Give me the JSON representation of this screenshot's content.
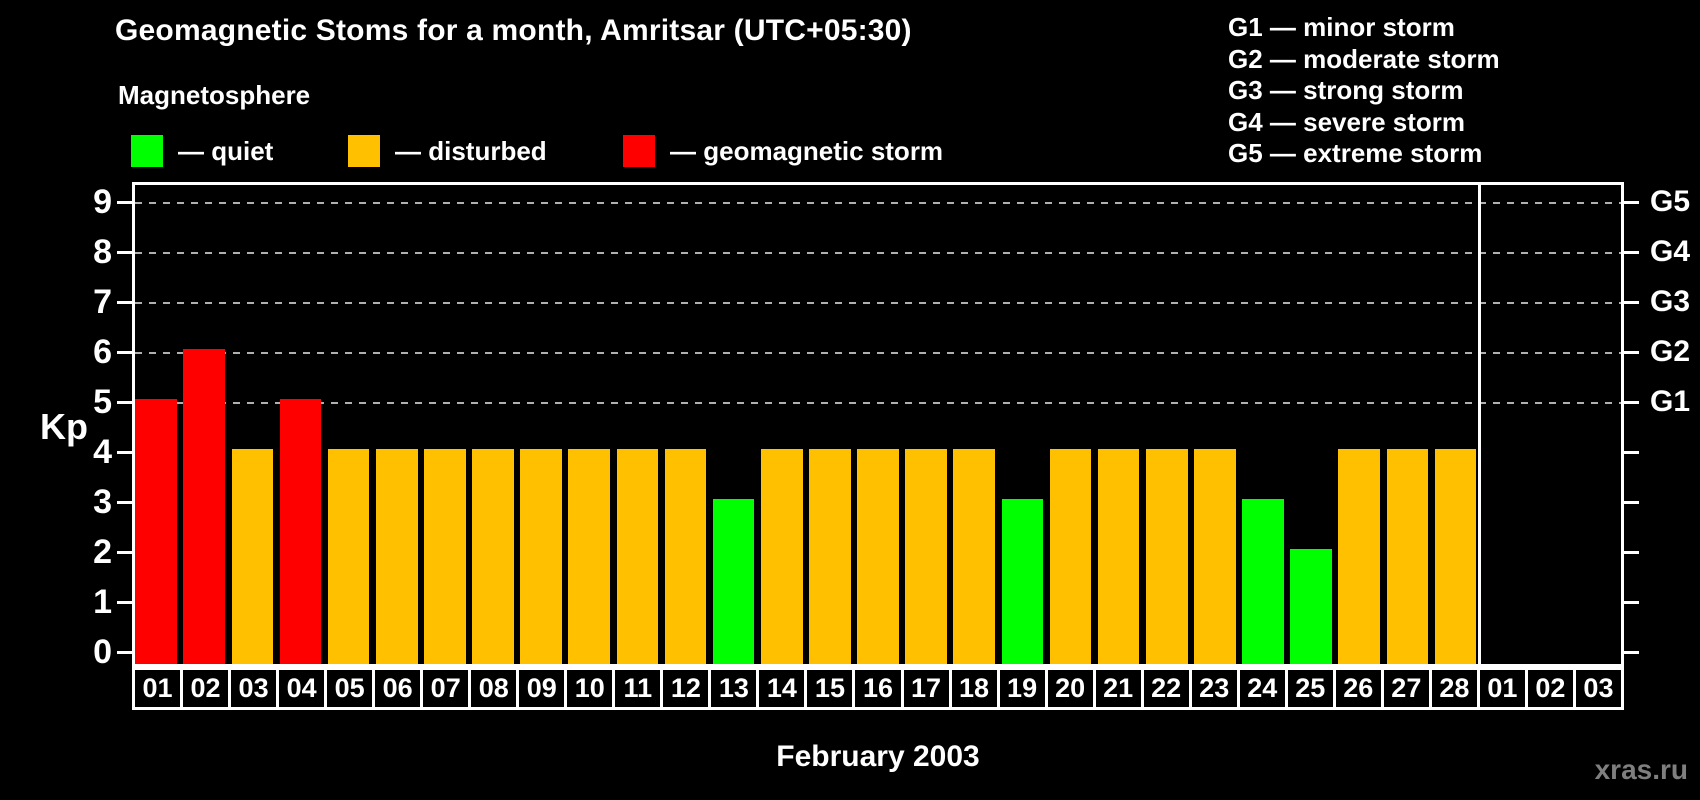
{
  "title": "Geomagnetic Stoms for a month, Amritsar (UTC+05:30)",
  "subtitle": "Magnetosphere",
  "legend": {
    "items": [
      {
        "status": "quiet",
        "label": "— quiet"
      },
      {
        "status": "disturbed",
        "label": "— disturbed"
      },
      {
        "status": "storm",
        "label": "— geomagnetic storm"
      }
    ]
  },
  "g_legend": [
    "G1 — minor storm",
    "G2 — moderate storm",
    "G3 — strong storm",
    "G4 — severe storm",
    "G5 — extreme storm"
  ],
  "footer": {
    "watermark": "xras.ru"
  },
  "chart_data": {
    "type": "bar",
    "title": "Geomagnetic Stoms for a month, Amritsar (UTC+05:30)",
    "xlabel": "February 2003",
    "ylabel": "Kp",
    "ylim": [
      0,
      9.4
    ],
    "yticks": [
      "0",
      "1",
      "2",
      "3",
      "4",
      "5",
      "6",
      "7",
      "8",
      "9"
    ],
    "gridlines_at": [
      5,
      6,
      7,
      8,
      9
    ],
    "grid": true,
    "legend_position": "top",
    "right_axis_labels": [
      {
        "value": 5,
        "label": "G1"
      },
      {
        "value": 6,
        "label": "G2"
      },
      {
        "value": 7,
        "label": "G3"
      },
      {
        "value": 8,
        "label": "G4"
      },
      {
        "value": 9,
        "label": "G5"
      }
    ],
    "month_separator_after_slot": 28,
    "categories": [
      "01",
      "02",
      "03",
      "04",
      "05",
      "06",
      "07",
      "08",
      "09",
      "10",
      "11",
      "12",
      "13",
      "14",
      "15",
      "16",
      "17",
      "18",
      "19",
      "20",
      "21",
      "22",
      "23",
      "24",
      "25",
      "26",
      "27",
      "28",
      "01",
      "02",
      "03"
    ],
    "values": [
      5,
      6,
      4,
      5,
      4,
      4,
      4,
      4,
      4,
      4,
      4,
      4,
      3,
      4,
      4,
      4,
      4,
      4,
      3,
      4,
      4,
      4,
      4,
      3,
      2,
      4,
      4,
      4,
      null,
      null,
      null
    ],
    "statuses": [
      "storm",
      "storm",
      "disturbed",
      "storm",
      "disturbed",
      "disturbed",
      "disturbed",
      "disturbed",
      "disturbed",
      "disturbed",
      "disturbed",
      "disturbed",
      "quiet",
      "disturbed",
      "disturbed",
      "disturbed",
      "disturbed",
      "disturbed",
      "quiet",
      "disturbed",
      "disturbed",
      "disturbed",
      "disturbed",
      "quiet",
      "quiet",
      "disturbed",
      "disturbed",
      "disturbed",
      null,
      null,
      null
    ],
    "colors": {
      "quiet": "#00ff00",
      "disturbed": "#ffc000",
      "storm": "#ff0000"
    },
    "grid_color": "#b0b0b0",
    "axis_color": "#ffffff"
  }
}
